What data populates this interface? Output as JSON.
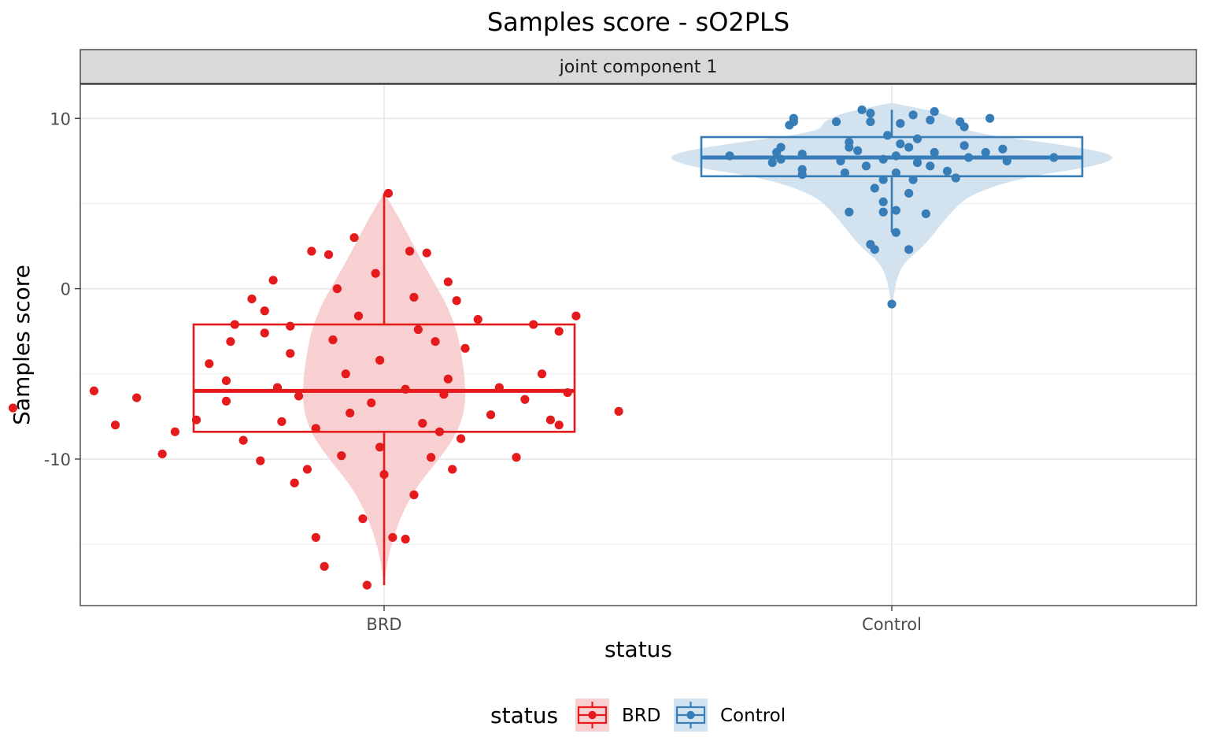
{
  "chart_data": {
    "type": "violin-box-jitter",
    "title": "Samples score - sO2PLS",
    "facet": "joint component 1",
    "xlabel": "status",
    "ylabel": "Samples score",
    "categories": [
      "BRD",
      "Control"
    ],
    "ylim": [
      -18.6,
      12
    ],
    "yticks": [
      10,
      0,
      -10
    ],
    "ytick_labels": [
      "10",
      "0",
      "-10"
    ],
    "grid": true,
    "legend": {
      "title": "status",
      "position": "bottom",
      "entries": [
        "BRD",
        "Control"
      ]
    },
    "colors": {
      "BRD": "#e41a1c",
      "BRD_fill": "#f8d0d1",
      "Control": "#377eb8",
      "Control_fill": "#d3e2ef"
    },
    "series": [
      {
        "name": "BRD",
        "box": {
          "q1": -8.4,
          "median": -6.0,
          "q3": -2.1,
          "whisker_low": -17.4,
          "whisker_high": 5.6
        },
        "violin": [
          [
            -17.4,
            0.002
          ],
          [
            -16,
            0.04
          ],
          [
            -14.5,
            0.12
          ],
          [
            -13,
            0.24
          ],
          [
            -11.5,
            0.42
          ],
          [
            -10,
            0.68
          ],
          [
            -8.5,
            0.9
          ],
          [
            -7,
            1.0
          ],
          [
            -5.5,
            1.0
          ],
          [
            -4,
            0.96
          ],
          [
            -2.5,
            0.9
          ],
          [
            -1,
            0.78
          ],
          [
            0.5,
            0.6
          ],
          [
            2,
            0.42
          ],
          [
            3.5,
            0.26
          ],
          [
            5,
            0.08
          ],
          [
            5.6,
            0.004
          ]
        ],
        "points": [
          [
            -0.87,
            -7.0
          ],
          [
            -0.68,
            -6.0
          ],
          [
            -0.63,
            -8.0
          ],
          [
            -0.58,
            -6.4
          ],
          [
            -0.52,
            -9.7
          ],
          [
            -0.49,
            -8.4
          ],
          [
            -0.44,
            -7.7
          ],
          [
            -0.41,
            -4.4
          ],
          [
            -0.37,
            -6.6
          ],
          [
            -0.37,
            -5.4
          ],
          [
            -0.36,
            -3.1
          ],
          [
            -0.35,
            -2.1
          ],
          [
            -0.33,
            -8.9
          ],
          [
            -0.31,
            -0.6
          ],
          [
            -0.29,
            -10.1
          ],
          [
            -0.28,
            -2.6
          ],
          [
            -0.28,
            -1.3
          ],
          [
            -0.26,
            0.5
          ],
          [
            -0.25,
            -5.8
          ],
          [
            -0.24,
            -7.8
          ],
          [
            -0.22,
            -3.8
          ],
          [
            -0.22,
            -2.2
          ],
          [
            -0.21,
            -11.4
          ],
          [
            -0.2,
            -6.3
          ],
          [
            -0.18,
            -10.6
          ],
          [
            -0.17,
            2.2
          ],
          [
            -0.16,
            -8.2
          ],
          [
            -0.16,
            -14.6
          ],
          [
            -0.14,
            -16.3
          ],
          [
            -0.13,
            2.0
          ],
          [
            -0.12,
            -3.0
          ],
          [
            -0.11,
            0.0
          ],
          [
            -0.1,
            -9.8
          ],
          [
            -0.09,
            -5.0
          ],
          [
            -0.08,
            -7.3
          ],
          [
            -0.07,
            3.0
          ],
          [
            -0.06,
            -1.6
          ],
          [
            -0.05,
            -13.5
          ],
          [
            -0.04,
            -17.4
          ],
          [
            -0.03,
            -6.7
          ],
          [
            -0.02,
            0.9
          ],
          [
            -0.01,
            -9.3
          ],
          [
            -0.01,
            -4.2
          ],
          [
            0.0,
            -10.9
          ],
          [
            0.01,
            5.6
          ],
          [
            0.02,
            -14.6
          ],
          [
            0.05,
            -14.7
          ],
          [
            0.05,
            -5.9
          ],
          [
            0.06,
            2.2
          ],
          [
            0.07,
            -12.1
          ],
          [
            0.07,
            -0.5
          ],
          [
            0.08,
            -2.4
          ],
          [
            0.09,
            -7.9
          ],
          [
            0.1,
            2.1
          ],
          [
            0.11,
            -9.9
          ],
          [
            0.12,
            -3.1
          ],
          [
            0.13,
            -8.4
          ],
          [
            0.14,
            -6.2
          ],
          [
            0.15,
            0.4
          ],
          [
            0.15,
            -5.3
          ],
          [
            0.16,
            -10.6
          ],
          [
            0.17,
            -0.7
          ],
          [
            0.18,
            -8.8
          ],
          [
            0.19,
            -3.5
          ],
          [
            0.22,
            -1.8
          ],
          [
            0.25,
            -7.4
          ],
          [
            0.27,
            -5.8
          ],
          [
            0.31,
            -9.9
          ],
          [
            0.33,
            -6.5
          ],
          [
            0.35,
            -2.1
          ],
          [
            0.37,
            -5.0
          ],
          [
            0.39,
            -7.7
          ],
          [
            0.41,
            -2.5
          ],
          [
            0.41,
            -8.0
          ],
          [
            0.43,
            -6.1
          ],
          [
            0.45,
            -1.6
          ],
          [
            0.55,
            -7.2
          ]
        ]
      },
      {
        "name": "Control",
        "box": {
          "q1": 6.6,
          "median": 7.7,
          "q3": 8.9,
          "whisker_low": 3.3,
          "whisker_high": 10.5
        },
        "violin": [
          [
            -0.9,
            0.002
          ],
          [
            -0.3,
            0.01
          ],
          [
            0.5,
            0.02
          ],
          [
            1.5,
            0.05
          ],
          [
            2.5,
            0.14
          ],
          [
            3.5,
            0.2
          ],
          [
            4.5,
            0.26
          ],
          [
            5.5,
            0.34
          ],
          [
            6.5,
            0.56
          ],
          [
            7.2,
            0.9
          ],
          [
            7.8,
            1.0
          ],
          [
            8.4,
            0.78
          ],
          [
            9.2,
            0.32
          ],
          [
            9.8,
            0.3
          ],
          [
            10.3,
            0.22
          ],
          [
            10.7,
            0.08
          ],
          [
            10.9,
            0.002
          ]
        ],
        "points": [
          [
            -0.38,
            7.8
          ],
          [
            -0.28,
            7.4
          ],
          [
            -0.27,
            8.0
          ],
          [
            -0.26,
            8.3
          ],
          [
            -0.26,
            7.6
          ],
          [
            -0.24,
            9.6
          ],
          [
            -0.23,
            10.0
          ],
          [
            -0.23,
            9.8
          ],
          [
            -0.21,
            7.0
          ],
          [
            -0.21,
            6.7
          ],
          [
            -0.21,
            7.9
          ],
          [
            -0.13,
            9.8
          ],
          [
            -0.12,
            7.5
          ],
          [
            -0.11,
            6.8
          ],
          [
            -0.1,
            8.6
          ],
          [
            -0.1,
            8.3
          ],
          [
            -0.1,
            4.5
          ],
          [
            -0.08,
            8.1
          ],
          [
            -0.07,
            10.5
          ],
          [
            -0.06,
            7.2
          ],
          [
            -0.05,
            10.3
          ],
          [
            -0.05,
            9.8
          ],
          [
            -0.05,
            2.6
          ],
          [
            -0.04,
            5.9
          ],
          [
            -0.04,
            2.3
          ],
          [
            -0.02,
            7.6
          ],
          [
            -0.02,
            5.1
          ],
          [
            -0.02,
            6.4
          ],
          [
            -0.02,
            4.5
          ],
          [
            -0.01,
            9.0
          ],
          [
            0.0,
            -0.9
          ],
          [
            0.01,
            3.3
          ],
          [
            0.01,
            7.8
          ],
          [
            0.01,
            6.8
          ],
          [
            0.01,
            4.6
          ],
          [
            0.02,
            8.5
          ],
          [
            0.02,
            9.7
          ],
          [
            0.04,
            5.6
          ],
          [
            0.04,
            2.3
          ],
          [
            0.04,
            8.3
          ],
          [
            0.05,
            10.2
          ],
          [
            0.05,
            6.4
          ],
          [
            0.06,
            8.8
          ],
          [
            0.06,
            7.4
          ],
          [
            0.08,
            4.4
          ],
          [
            0.09,
            7.2
          ],
          [
            0.09,
            9.9
          ],
          [
            0.1,
            8.0
          ],
          [
            0.1,
            10.4
          ],
          [
            0.13,
            6.9
          ],
          [
            0.15,
            6.5
          ],
          [
            0.16,
            9.8
          ],
          [
            0.17,
            9.5
          ],
          [
            0.17,
            8.4
          ],
          [
            0.18,
            7.7
          ],
          [
            0.22,
            8.0
          ],
          [
            0.23,
            10.0
          ],
          [
            0.26,
            8.2
          ],
          [
            0.27,
            7.5
          ],
          [
            0.38,
            7.7
          ]
        ]
      }
    ]
  }
}
